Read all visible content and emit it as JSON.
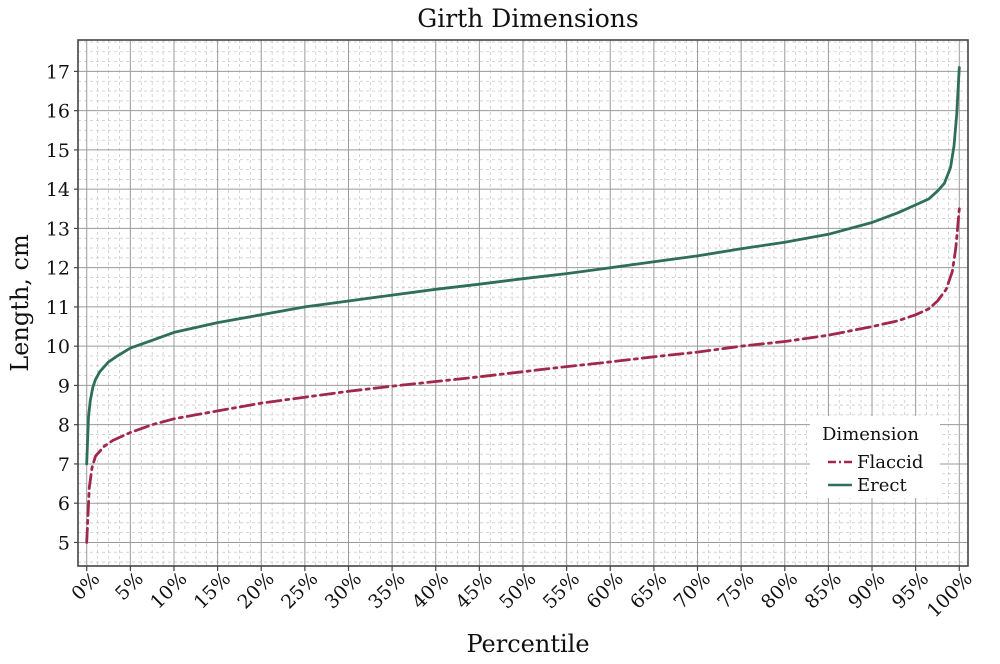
{
  "chart_data": {
    "type": "line",
    "title": "Girth Dimensions",
    "xlabel": "Percentile",
    "ylabel": "Length, cm",
    "x_ticks": [
      "0%",
      "5%",
      "10%",
      "15%",
      "20%",
      "25%",
      "30%",
      "35%",
      "40%",
      "45%",
      "50%",
      "55%",
      "60%",
      "65%",
      "70%",
      "75%",
      "80%",
      "85%",
      "90%",
      "95%",
      "100%"
    ],
    "y_ticks": [
      5,
      6,
      7,
      8,
      9,
      10,
      11,
      12,
      13,
      14,
      15,
      16,
      17
    ],
    "xlim": [
      -1,
      101
    ],
    "ylim": [
      4.4,
      17.8
    ],
    "grid": true,
    "legend_title": "Dimension",
    "legend_position": "bottom-right",
    "series": [
      {
        "name": "Flaccid",
        "color": "#a0284a",
        "style": "dashdot",
        "x": [
          0,
          0.3,
          0.6,
          1,
          2,
          3,
          5,
          7.5,
          10,
          15,
          20,
          25,
          30,
          35,
          40,
          45,
          50,
          55,
          60,
          65,
          70,
          75,
          80,
          85,
          90,
          93,
          95,
          96.5,
          97.5,
          98.5,
          99.2,
          99.6,
          100
        ],
        "y": [
          5.0,
          6.4,
          6.9,
          7.2,
          7.45,
          7.6,
          7.8,
          8.0,
          8.15,
          8.35,
          8.55,
          8.7,
          8.85,
          8.98,
          9.1,
          9.22,
          9.35,
          9.48,
          9.6,
          9.73,
          9.85,
          10.0,
          10.12,
          10.28,
          10.5,
          10.65,
          10.8,
          10.95,
          11.15,
          11.45,
          11.9,
          12.5,
          13.5
        ]
      },
      {
        "name": "Erect",
        "color": "#2e6e5a",
        "style": "solid",
        "x": [
          0,
          0.2,
          0.4,
          0.7,
          1,
          1.5,
          2.5,
          3.5,
          5,
          7.5,
          10,
          15,
          20,
          25,
          30,
          35,
          40,
          45,
          50,
          55,
          60,
          65,
          70,
          75,
          80,
          85,
          90,
          93,
          95,
          96.5,
          97.5,
          98.3,
          99,
          99.4,
          99.7,
          100
        ],
        "y": [
          7.0,
          8.2,
          8.6,
          8.95,
          9.15,
          9.35,
          9.6,
          9.75,
          9.95,
          10.15,
          10.35,
          10.6,
          10.8,
          11.0,
          11.15,
          11.3,
          11.45,
          11.58,
          11.72,
          11.85,
          12.0,
          12.15,
          12.3,
          12.48,
          12.65,
          12.85,
          13.15,
          13.4,
          13.6,
          13.75,
          13.95,
          14.15,
          14.55,
          15.1,
          15.9,
          17.1
        ]
      }
    ]
  }
}
